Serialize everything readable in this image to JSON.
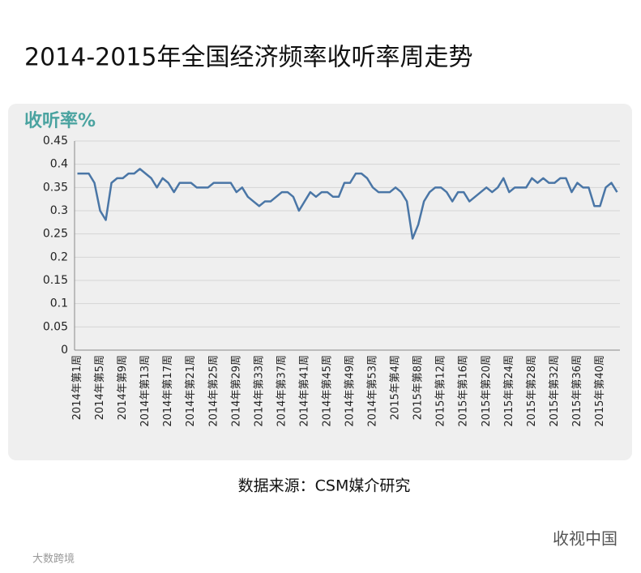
{
  "page_title": "2014-2015年全国经济频率收听率周走势",
  "source": "数据来源：CSM媒介研究",
  "watermark": "收视中国",
  "corner_logo": "大数跨境",
  "chart_data": {
    "type": "line",
    "ylabel": "收听率%",
    "categories": [
      "2014年第1周",
      null,
      null,
      null,
      "2014年第5周",
      null,
      null,
      null,
      "2014年第9周",
      null,
      null,
      null,
      "2014年第13周",
      null,
      null,
      null,
      "2014年第17周",
      null,
      null,
      null,
      "2014年第21周",
      null,
      null,
      null,
      "2014年第25周",
      null,
      null,
      null,
      "2014年第29周",
      null,
      null,
      null,
      "2014年第33周",
      null,
      null,
      null,
      "2014年第37周",
      null,
      null,
      null,
      "2014年第41周",
      null,
      null,
      null,
      "2014年第45周",
      null,
      null,
      null,
      "2014年第49周",
      null,
      null,
      null,
      "2014年第53周",
      null,
      null,
      null,
      "2015年第4周",
      null,
      null,
      null,
      "2015年第8周",
      null,
      null,
      null,
      "2015年第12周",
      null,
      null,
      null,
      "2015年第16周",
      null,
      null,
      null,
      "2015年第20周",
      null,
      null,
      null,
      "2015年第24周",
      null,
      null,
      null,
      "2015年第28周",
      null,
      null,
      null,
      "2015年第32周",
      null,
      null,
      null,
      "2015年第36周",
      null,
      null,
      null,
      "2015年第40周",
      null,
      null,
      null
    ],
    "values": [
      0.38,
      0.38,
      0.38,
      0.36,
      0.3,
      0.28,
      0.36,
      0.37,
      0.37,
      0.38,
      0.38,
      0.39,
      0.38,
      0.37,
      0.35,
      0.37,
      0.36,
      0.34,
      0.36,
      0.36,
      0.36,
      0.35,
      0.35,
      0.35,
      0.36,
      0.36,
      0.36,
      0.36,
      0.34,
      0.35,
      0.33,
      0.32,
      0.31,
      0.32,
      0.32,
      0.33,
      0.34,
      0.34,
      0.33,
      0.3,
      0.32,
      0.34,
      0.33,
      0.34,
      0.34,
      0.33,
      0.33,
      0.36,
      0.36,
      0.38,
      0.38,
      0.37,
      0.35,
      0.34,
      0.34,
      0.34,
      0.35,
      0.34,
      0.32,
      0.24,
      0.27,
      0.32,
      0.34,
      0.35,
      0.35,
      0.34,
      0.32,
      0.34,
      0.34,
      0.32,
      0.33,
      0.34,
      0.35,
      0.34,
      0.35,
      0.37,
      0.34,
      0.35,
      0.35,
      0.35,
      0.37,
      0.36,
      0.37,
      0.36,
      0.36,
      0.37,
      0.37,
      0.34,
      0.36,
      0.35,
      0.35,
      0.31,
      0.31,
      0.35,
      0.36,
      0.34
    ],
    "color": "#4a76a6",
    "ylim": [
      0,
      0.45
    ],
    "yticks": [
      0,
      0.05,
      0.1,
      0.15,
      0.2,
      0.25,
      0.3,
      0.35,
      0.4,
      0.45
    ],
    "grid": true
  }
}
